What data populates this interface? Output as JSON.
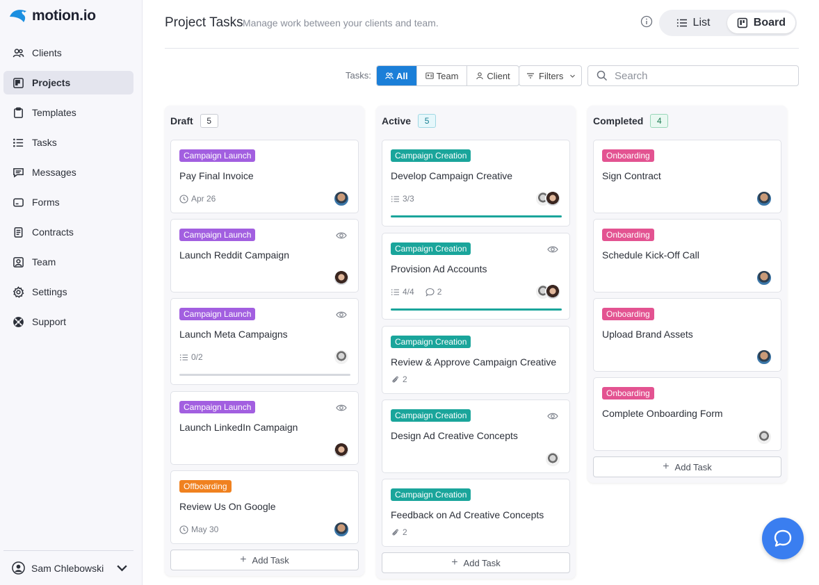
{
  "app": {
    "logo_text": "motion.io"
  },
  "sidebar": {
    "items": [
      {
        "label": "Clients",
        "icon": "users-icon"
      },
      {
        "label": "Projects",
        "icon": "board-icon",
        "active": true
      },
      {
        "label": "Templates",
        "icon": "clipboard-icon"
      },
      {
        "label": "Tasks",
        "icon": "list-icon"
      },
      {
        "label": "Messages",
        "icon": "message-icon"
      },
      {
        "label": "Forms",
        "icon": "form-icon"
      },
      {
        "label": "Contracts",
        "icon": "document-icon"
      },
      {
        "label": "Team",
        "icon": "team-icon"
      },
      {
        "label": "Settings",
        "icon": "gear-icon"
      },
      {
        "label": "Support",
        "icon": "lifebuoy-icon"
      }
    ],
    "user_name": "Sam Chlebowski"
  },
  "header": {
    "title": "Project Tasks",
    "subtitle": "Manage work between your clients and team.",
    "view_list": "List",
    "view_board": "Board"
  },
  "toolbar": {
    "tasks_label": "Tasks:",
    "seg_all": "All",
    "seg_team": "Team",
    "seg_client": "Client",
    "filters": "Filters",
    "search_placeholder": "Search"
  },
  "columns": [
    {
      "title": "Draft",
      "count": "5"
    },
    {
      "title": "Active",
      "count": "5"
    },
    {
      "title": "Completed",
      "count": "4"
    }
  ],
  "cards": {
    "draft": [
      {
        "tag": "Campaign Launch",
        "title": "Pay Final Invoice",
        "meta": "Apr 26"
      },
      {
        "tag": "Campaign Launch",
        "title": "Launch Reddit Campaign"
      },
      {
        "tag": "Campaign Launch",
        "title": "Launch Meta Campaigns",
        "meta": "0/2",
        "progress": 0
      },
      {
        "tag": "Campaign Launch",
        "title": "Launch LinkedIn Campaign"
      },
      {
        "tag": "Offboarding",
        "title": "Review Us On Google",
        "meta": "May 30"
      }
    ],
    "active": [
      {
        "tag": "Campaign Creation",
        "title": "Develop Campaign Creative",
        "meta": "3/3",
        "progress": 1
      },
      {
        "tag": "Campaign Creation",
        "title": "Provision Ad Accounts",
        "meta": "4/4",
        "comments": "2",
        "progress": 1
      },
      {
        "tag": "Campaign Creation",
        "title": "Review & Approve Campaign Creative",
        "attachments": "2"
      },
      {
        "tag": "Campaign Creation",
        "title": "Design Ad Creative Concepts"
      },
      {
        "tag": "Campaign Creation",
        "title": "Feedback on Ad Creative Concepts",
        "attachments": "2"
      }
    ],
    "completed": [
      {
        "tag": "Onboarding",
        "title": "Sign Contract"
      },
      {
        "tag": "Onboarding",
        "title": "Schedule Kick-Off Call"
      },
      {
        "tag": "Onboarding",
        "title": "Upload Brand Assets"
      },
      {
        "tag": "Onboarding",
        "title": "Complete Onboarding Form"
      }
    ]
  },
  "add_task_label": "Add Task",
  "colors": {
    "accent": "#1b7fd8",
    "tag_campaign_launch": "#a25fe0",
    "tag_campaign_creation": "#1aa59b",
    "tag_onboarding": "#e35391",
    "tag_offboarding": "#f0811f"
  }
}
